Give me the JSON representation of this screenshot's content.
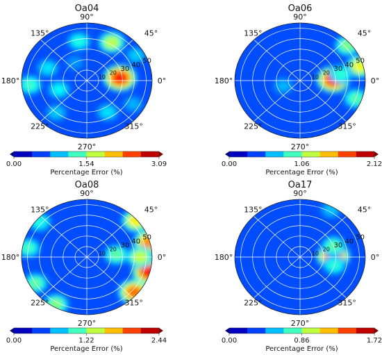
{
  "chart_data": [
    {
      "type": "heatmap",
      "projection": "polar",
      "title": "Oa04",
      "angle_ticks": [
        "0°",
        "45°",
        "90°",
        "135°",
        "180°",
        "225°",
        "270°",
        "315°"
      ],
      "radial_ticks": [
        "10",
        "20",
        "30",
        "40",
        "50"
      ],
      "colorbar": {
        "min": 0.0,
        "max": 3.09,
        "ticks": [
          "0.00",
          "1.54",
          "3.09"
        ],
        "label": "Percentage Error (%)"
      },
      "hotspots": [
        {
          "angle_deg": 5,
          "radius": 28,
          "value": 3.09
        },
        {
          "angle_deg": 60,
          "radius": 42,
          "value": 2.0
        },
        {
          "angle_deg": 100,
          "radius": 38,
          "value": 1.4
        },
        {
          "angle_deg": 160,
          "radius": 35,
          "value": 1.2
        },
        {
          "angle_deg": 185,
          "radius": 48,
          "value": 1.5
        },
        {
          "angle_deg": 200,
          "radius": 25,
          "value": 1.3
        },
        {
          "angle_deg": 230,
          "radius": 40,
          "value": 1.1
        },
        {
          "angle_deg": 300,
          "radius": 35,
          "value": 1.2
        },
        {
          "angle_deg": 330,
          "radius": 45,
          "value": 1.0
        },
        {
          "angle_deg": 120,
          "radius": 20,
          "value": 0.9
        },
        {
          "angle_deg": 30,
          "radius": 48,
          "value": 1.1
        }
      ]
    },
    {
      "type": "heatmap",
      "projection": "polar",
      "title": "Oa06",
      "angle_ticks": [
        "0°",
        "45°",
        "90°",
        "135°",
        "180°",
        "225°",
        "270°",
        "315°"
      ],
      "radial_ticks": [
        "10",
        "20",
        "30",
        "40",
        "50"
      ],
      "colorbar": {
        "min": 0.0,
        "max": 2.12,
        "ticks": [
          "0.00",
          "1.06",
          "2.12"
        ],
        "label": "Percentage Error (%)"
      },
      "hotspots": [
        {
          "angle_deg": 2,
          "radius": 28,
          "value": 2.12
        },
        {
          "angle_deg": 15,
          "radius": 52,
          "value": 1.5
        },
        {
          "angle_deg": 40,
          "radius": 52,
          "value": 1.2
        },
        {
          "angle_deg": 340,
          "radius": 50,
          "value": 1.1
        },
        {
          "angle_deg": 10,
          "radius": 35,
          "value": 1.0
        },
        {
          "angle_deg": 200,
          "radius": 15,
          "value": 0.7
        }
      ]
    },
    {
      "type": "heatmap",
      "projection": "polar",
      "title": "Oa08",
      "angle_ticks": [
        "0°",
        "45°",
        "90°",
        "135°",
        "180°",
        "225°",
        "270°",
        "315°"
      ],
      "radial_ticks": [
        "10",
        "20",
        "30",
        "40",
        "50"
      ],
      "colorbar": {
        "min": 0.0,
        "max": 2.44,
        "ticks": [
          "0.00",
          "1.22",
          "2.44"
        ],
        "label": "Percentage Error (%)"
      },
      "hotspots": [
        {
          "angle_deg": 345,
          "radius": 54,
          "value": 2.44
        },
        {
          "angle_deg": 15,
          "radius": 54,
          "value": 2.1
        },
        {
          "angle_deg": 40,
          "radius": 54,
          "value": 1.8
        },
        {
          "angle_deg": 320,
          "radius": 52,
          "value": 2.2
        },
        {
          "angle_deg": 0,
          "radius": 45,
          "value": 1.6
        },
        {
          "angle_deg": 210,
          "radius": 50,
          "value": 1.3
        },
        {
          "angle_deg": 240,
          "radius": 52,
          "value": 1.4
        },
        {
          "angle_deg": 140,
          "radius": 52,
          "value": 1.1
        },
        {
          "angle_deg": 170,
          "radius": 50,
          "value": 1.2
        },
        {
          "angle_deg": 5,
          "radius": 25,
          "value": 1.3
        }
      ]
    },
    {
      "type": "heatmap",
      "projection": "polar",
      "title": "Oa17",
      "angle_ticks": [
        "0°",
        "45°",
        "90°",
        "135°",
        "180°",
        "225°",
        "270°",
        "315°"
      ],
      "radial_ticks": [
        "10",
        "20",
        "30",
        "40",
        "50"
      ],
      "colorbar": {
        "min": 0.0,
        "max": 1.72,
        "ticks": [
          "0.00",
          "0.86",
          "1.72"
        ],
        "label": "Percentage Error (%)"
      },
      "hotspots": [
        {
          "angle_deg": 2,
          "radius": 28,
          "value": 1.72
        },
        {
          "angle_deg": 20,
          "radius": 30,
          "value": 0.9
        },
        {
          "angle_deg": 345,
          "radius": 30,
          "value": 0.8
        },
        {
          "angle_deg": 60,
          "radius": 52,
          "value": 0.6
        }
      ]
    }
  ],
  "colors": {
    "colormap": [
      "#00007f",
      "#0000ff",
      "#007fff",
      "#00ffff",
      "#7fff7f",
      "#ffff00",
      "#ff7f00",
      "#ff0000",
      "#7f0000"
    ],
    "grid": "#ffffff",
    "axis_text": "#111111"
  }
}
